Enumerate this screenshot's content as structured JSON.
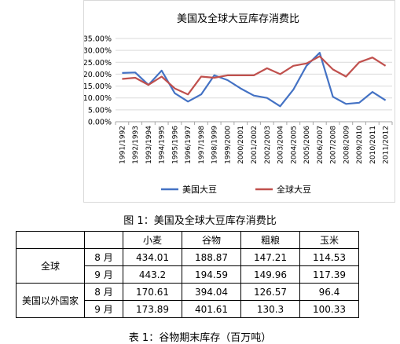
{
  "chart_data": {
    "type": "line",
    "title": "美国及全球大豆库存消费比",
    "x": [
      "1991/1992",
      "1992/1993",
      "1993/1994",
      "1994/1995",
      "1995/1996",
      "1996/1997",
      "1997/1998",
      "1998/1999",
      "1999/2000",
      "2000/2001",
      "2001/2002",
      "2002/2003",
      "2003/2004",
      "2004/2005",
      "2005/2006",
      "2006/2007",
      "2007/2008",
      "2008/2009",
      "2009/2010",
      "2010/2011",
      "2011/2012"
    ],
    "y_ticks": [
      "35.00%",
      "30.00%",
      "25.00%",
      "20.00%",
      "15.00%",
      "10.00%",
      "5.00%",
      "0.00%"
    ],
    "ylim": [
      0,
      35
    ],
    "series": [
      {
        "name": "美国大豆",
        "color": "#4472c4",
        "values": [
          20.5,
          20.7,
          15.5,
          21.5,
          12.0,
          8.5,
          11.5,
          19.5,
          17.5,
          14.0,
          11.0,
          10.0,
          6.5,
          13.5,
          23.5,
          29.0,
          10.5,
          7.5,
          8.0,
          12.5,
          9.0
        ]
      },
      {
        "name": "全球大豆",
        "color": "#c0504d",
        "values": [
          18.0,
          18.5,
          15.5,
          19.0,
          14.0,
          11.5,
          19.0,
          18.5,
          19.5,
          19.5,
          19.5,
          22.5,
          20.0,
          23.5,
          24.5,
          27.5,
          22.0,
          19.0,
          25.0,
          27.0,
          23.5
        ]
      }
    ],
    "legend_position": "bottom",
    "grid": true
  },
  "figure_caption": "图 1：美国及全球大豆库存消费比",
  "table": {
    "headers": [
      "",
      "",
      "小麦",
      "谷物",
      "粗粮",
      "玉米"
    ],
    "groups": [
      {
        "label": "全球",
        "rows": [
          {
            "month": "8 月",
            "values": [
              "434.01",
              "188.87",
              "147.21",
              "114.53"
            ]
          },
          {
            "month": "9 月",
            "values": [
              "443.2",
              "194.59",
              "149.96",
              "117.39"
            ]
          }
        ]
      },
      {
        "label": "美国以外国家",
        "rows": [
          {
            "month": "8 月",
            "values": [
              "170.61",
              "394.04",
              "126.57",
              "96.4"
            ]
          },
          {
            "month": "9 月",
            "values": [
              "173.89",
              "401.61",
              "130.3",
              "100.33"
            ]
          }
        ]
      }
    ]
  },
  "table_caption": "表 1：谷物期末库存（百万吨）"
}
